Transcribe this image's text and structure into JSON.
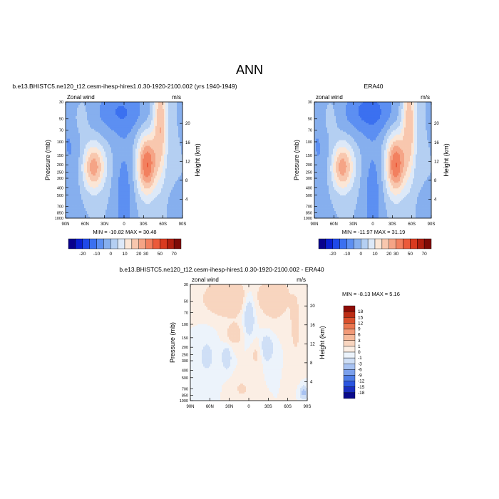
{
  "page": {
    "title": "ANN"
  },
  "colors": {
    "contour_palette": [
      "#08008c",
      "#0a1fd0",
      "#1f49e8",
      "#3b70f0",
      "#5c8ff2",
      "#86afee",
      "#b4cff2",
      "#dde9f8",
      "#fbe6d6",
      "#f8c7ae",
      "#f5a486",
      "#f2805f",
      "#eb5a3a",
      "#d93a1f",
      "#b01f0f",
      "#7e0b06"
    ],
    "diff_palette": [
      "#0a0a8c",
      "#1a2fc0",
      "#2a55e0",
      "#4f7de6",
      "#7ba0ec",
      "#a7c2f2",
      "#cfdff6",
      "#ecf3fb",
      "#fbeee4",
      "#f8d5bf",
      "#f5b99a",
      "#f29a78",
      "#ea7650",
      "#d9502d",
      "#bc2d15",
      "#8e0c05"
    ]
  },
  "chart_data": [
    {
      "type": "heatmap",
      "title": "b.e13.BHISTC5.ne120_t12.cesm-ihesp-hires1.0.30-1920-2100.002 (yrs 1940-1949)",
      "left_label": "Zonal wind",
      "right_label": "m/s",
      "x_ticks": [
        "90N",
        "60N",
        "30N",
        "0",
        "30S",
        "60S",
        "90S"
      ],
      "y_label": "Pressure (mb)",
      "y_ticks": [
        "30",
        "50",
        "70",
        "100",
        "150",
        "200",
        "250",
        "300",
        "400",
        "500",
        "700",
        "850",
        "1000"
      ],
      "y2_label": "Height (km)",
      "y2_ticks": [
        "20",
        "16",
        "12",
        "8",
        "4"
      ],
      "min_max": "MIN = -10.82   MAX =  30.48",
      "colorbar_labels": [
        "-20",
        "-10",
        "0",
        "10",
        "20",
        "30",
        "50",
        "70"
      ]
    },
    {
      "type": "heatmap",
      "title": "ERA40",
      "left_label": "zonal wind",
      "right_label": "m/s",
      "x_ticks": [
        "90N",
        "60N",
        "30N",
        "0",
        "30S",
        "60S",
        "90S"
      ],
      "y_label": "Pressure (mb)",
      "y_ticks": [
        "30",
        "50",
        "70",
        "100",
        "150",
        "200",
        "250",
        "300",
        "400",
        "500",
        "700",
        "850",
        "1000"
      ],
      "y2_label": "Height (km)",
      "y2_ticks": [
        "20",
        "16",
        "12",
        "8",
        "4"
      ],
      "min_max": "MIN = -11.97   MAX =  31.19",
      "colorbar_labels": [
        "-20",
        "-10",
        "0",
        "10",
        "20",
        "30",
        "50",
        "70"
      ]
    },
    {
      "type": "heatmap",
      "title": "b.e13.BHISTC5.ne120_t12.cesm-ihesp-hires1.0.30-1920-2100.002 - ERA40",
      "left_label": "zonal wind",
      "right_label": "m/s",
      "x_ticks": [
        "90N",
        "60N",
        "30N",
        "0",
        "30S",
        "60S",
        "90S"
      ],
      "y_label": "Pressure (mb)",
      "y_ticks": [
        "30",
        "50",
        "70",
        "100",
        "150",
        "200",
        "250",
        "300",
        "400",
        "500",
        "700",
        "850",
        "1000"
      ],
      "y2_label": "Height (km)",
      "y2_ticks": [
        "20",
        "16",
        "12",
        "8",
        "4"
      ],
      "min_max": "MIN =  -8.13   MAX =   5.16",
      "colorbar_labels": [
        "18",
        "15",
        "12",
        "9",
        "6",
        "3",
        "1",
        "0",
        "-1",
        "-3",
        "-6",
        "-9",
        "-12",
        "-15",
        "-18"
      ]
    }
  ]
}
